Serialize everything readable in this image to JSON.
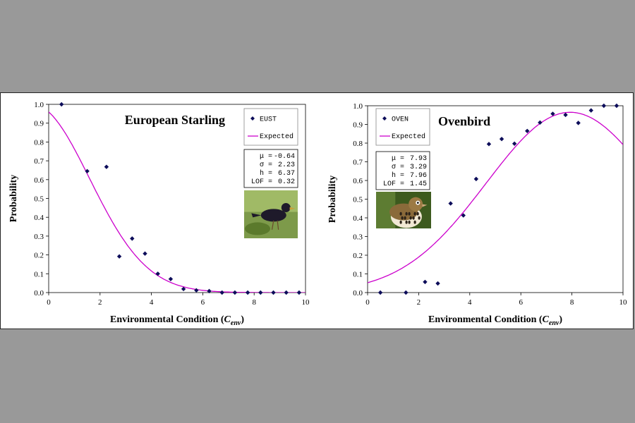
{
  "chart_data": [
    {
      "type": "scatter",
      "title": "European Starling",
      "xlabel": "Environmental Condition (",
      "xlabel_var": "C",
      "xlabel_sub": "env",
      "xlabel_end": ")",
      "ylabel": "Probability",
      "xlim": [
        0,
        10
      ],
      "ylim": [
        0,
        1
      ],
      "xticks": [
        "0",
        "2",
        "4",
        "6",
        "8",
        "10"
      ],
      "yticks": [
        "0.0",
        "0.1",
        "0.2",
        "0.3",
        "0.4",
        "0.5",
        "0.6",
        "0.7",
        "0.8",
        "0.9",
        "1.0"
      ],
      "legend": {
        "points_label": "EUST",
        "line_label": "Expected"
      },
      "series": [
        {
          "name": "EUST",
          "x": [
            0.5,
            1.5,
            2.25,
            2.75,
            3.25,
            3.75,
            4.25,
            4.75,
            5.25,
            5.75,
            6.25,
            6.75,
            7.25,
            7.75,
            8.25,
            8.75,
            9.25,
            9.75
          ],
          "y": [
            1.0,
            0.645,
            0.668,
            0.192,
            0.287,
            0.207,
            0.1,
            0.072,
            0.019,
            0.012,
            0.008,
            0.0,
            0.0,
            0.0,
            0.0,
            0.0,
            0.0,
            0.0
          ]
        }
      ],
      "expected": {
        "mu": -0.64,
        "sigma": 2.23,
        "h": 6.37,
        "lof": 0.32
      },
      "stats_lines": [
        {
          "label": "μ =",
          "value": "-0.64"
        },
        {
          "label": "σ =",
          "value": "2.23"
        },
        {
          "label": "h =",
          "value": "6.37"
        },
        {
          "label": "LOF =",
          "value": "0.32"
        }
      ]
    },
    {
      "type": "scatter",
      "title": "Ovenbird",
      "xlabel": "Environmental Condition (",
      "xlabel_var": "C",
      "xlabel_sub": "env",
      "xlabel_end": ")",
      "ylabel": "Probability",
      "xlim": [
        0,
        10
      ],
      "ylim": [
        0,
        1
      ],
      "xticks": [
        "0",
        "2",
        "4",
        "6",
        "8",
        "10"
      ],
      "yticks": [
        "0.0",
        "0.1",
        "0.2",
        "0.3",
        "0.4",
        "0.5",
        "0.6",
        "0.7",
        "0.8",
        "0.9",
        "1.0"
      ],
      "legend": {
        "points_label": "OVEN",
        "line_label": "Expected"
      },
      "series": [
        {
          "name": "OVEN",
          "x": [
            0.5,
            1.5,
            2.25,
            2.75,
            3.25,
            3.75,
            4.25,
            4.75,
            5.25,
            5.75,
            6.25,
            6.75,
            7.25,
            7.75,
            8.25,
            8.75,
            9.25,
            9.75
          ],
          "y": [
            0.0,
            0.0,
            0.057,
            0.049,
            0.477,
            0.413,
            0.608,
            0.795,
            0.822,
            0.797,
            0.865,
            0.91,
            0.957,
            0.951,
            0.908,
            0.975,
            1.0,
            1.0
          ]
        }
      ],
      "expected": {
        "mu": 7.93,
        "sigma": 3.29,
        "h": 7.96,
        "lof": 1.45
      },
      "stats_lines": [
        {
          "label": "μ =",
          "value": "7.93"
        },
        {
          "label": "σ =",
          "value": "3.29"
        },
        {
          "label": "h =",
          "value": "7.96"
        },
        {
          "label": "LOF =",
          "value": "1.45"
        }
      ]
    }
  ],
  "colors": {
    "points": "#0d0d5a",
    "curve": "#cc00cc",
    "background": "#999999",
    "panel": "#ffffff"
  },
  "photos": [
    "starling-photo",
    "ovenbird-photo"
  ]
}
